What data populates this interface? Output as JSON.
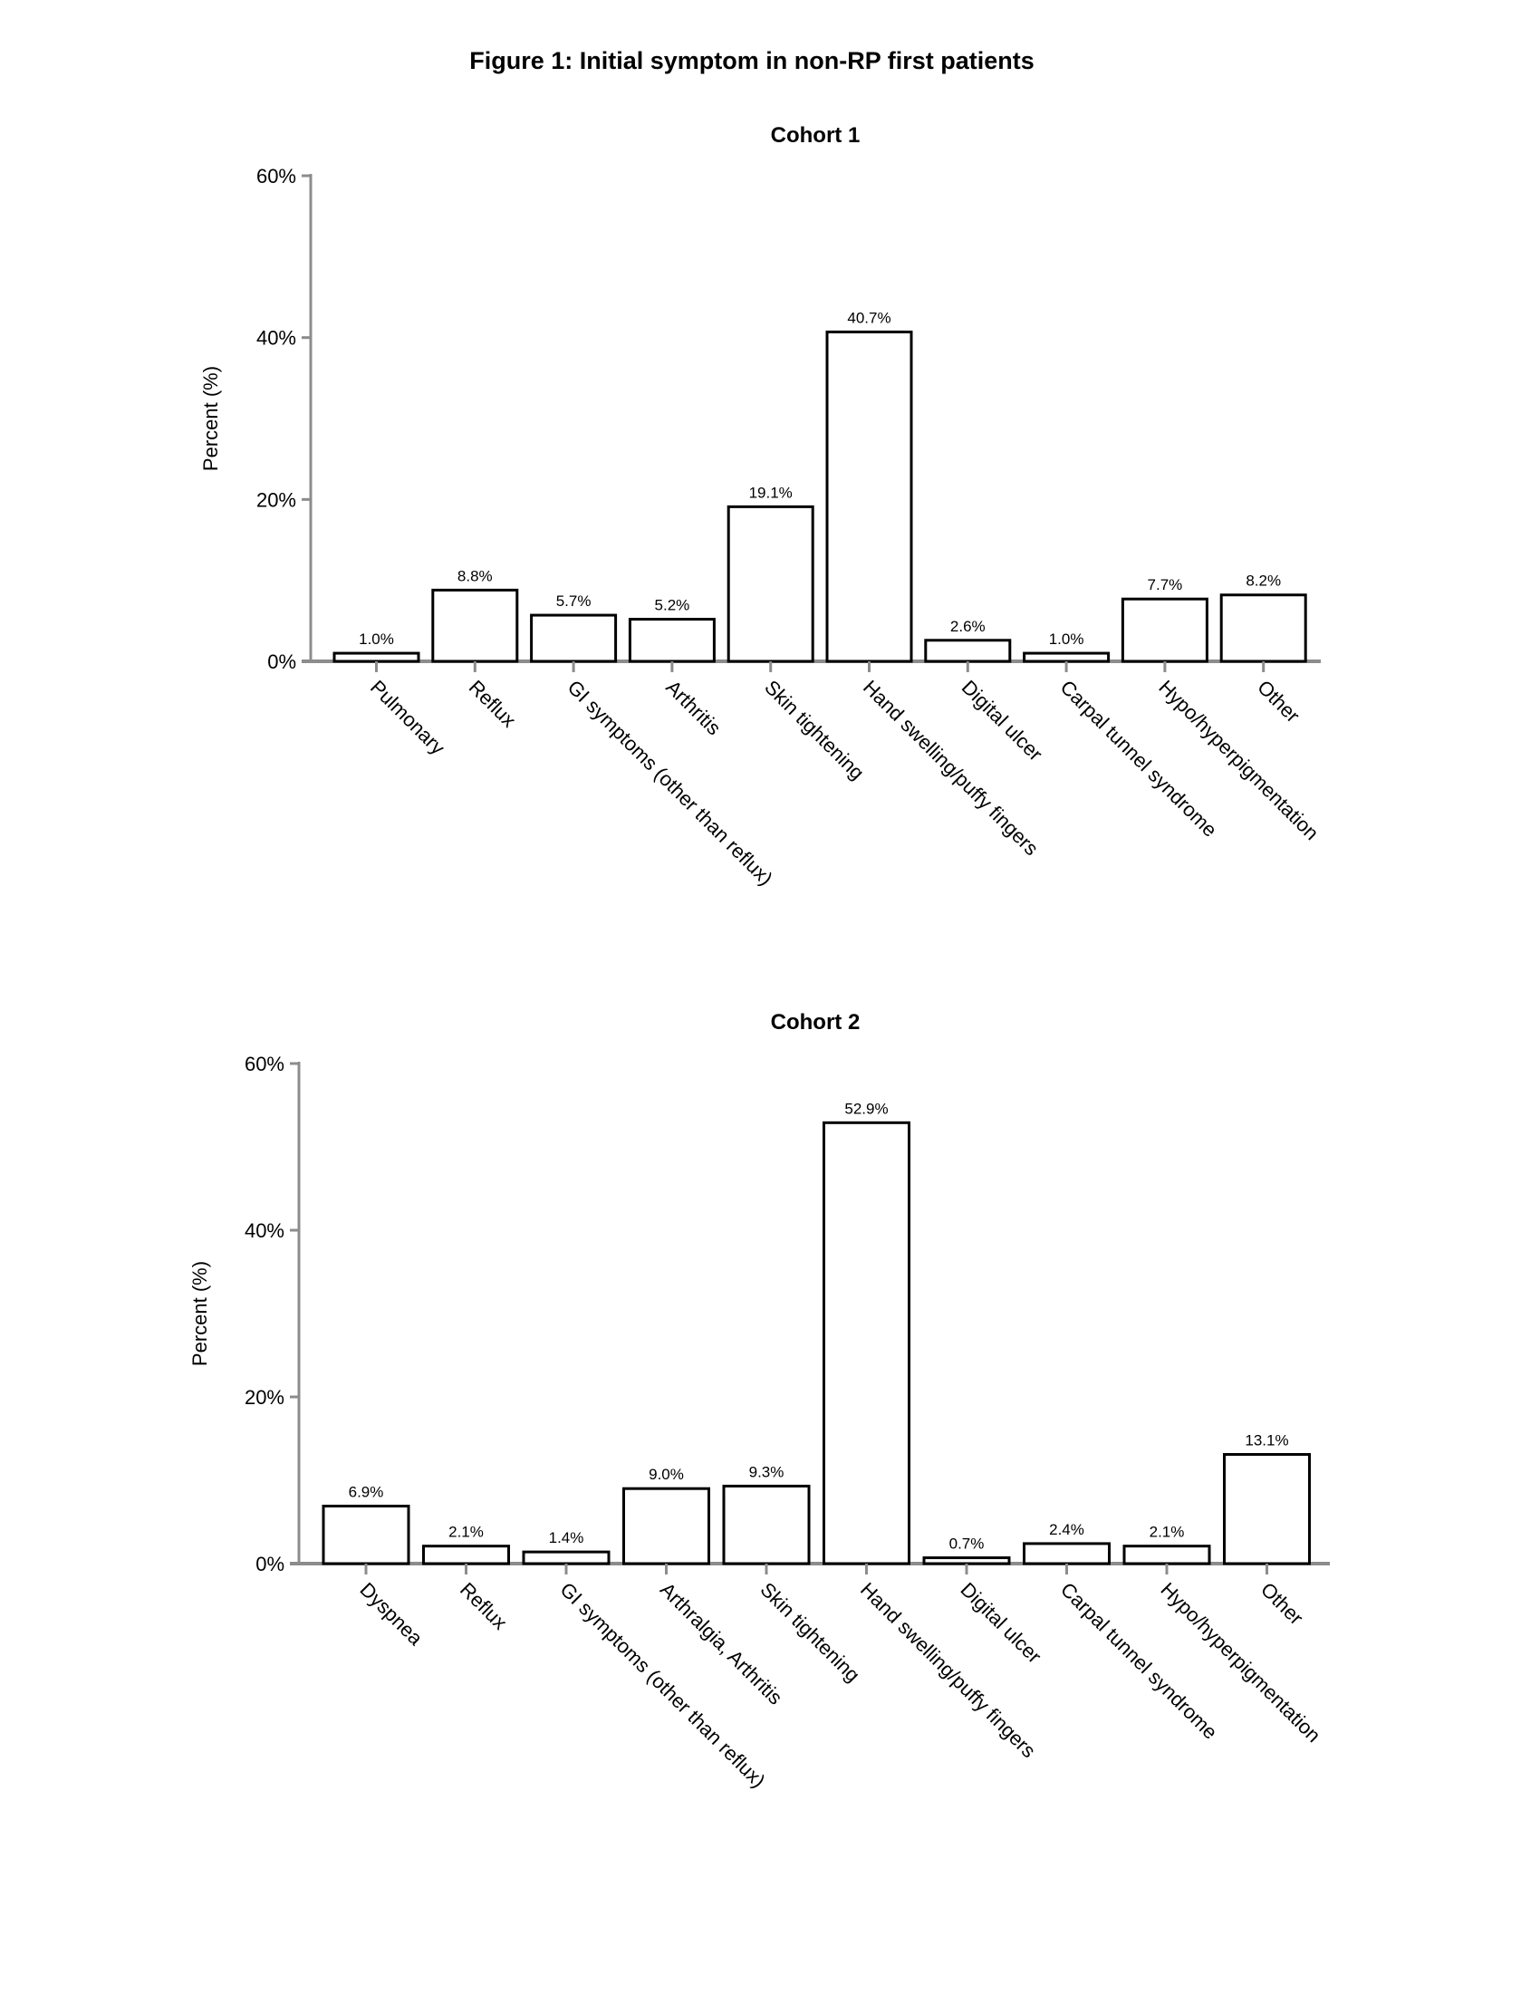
{
  "figure_title": "Figure 1: Initial symptom in non-RP first patients",
  "chart_data": [
    {
      "type": "bar",
      "title": "Cohort 1",
      "ylabel": "Percent (%)",
      "xlabel": "",
      "ylim": [
        0,
        60
      ],
      "yticks": [
        "0%",
        "20%",
        "40%",
        "60%"
      ],
      "grid": false,
      "categories": [
        "Pulmonary",
        "Reflux",
        "GI symptoms (other than reflux)",
        "Arthritis",
        "Skin tightening",
        "Hand swelling/puffy fingers",
        "Digital ulcer",
        "Carpal tunnel syndrome",
        "Hypo/hyperpigmentation",
        "Other"
      ],
      "values": [
        1.0,
        8.8,
        5.7,
        5.2,
        19.1,
        40.7,
        2.6,
        1.0,
        7.7,
        8.2
      ],
      "value_labels": [
        "1.0%",
        "8.8%",
        "5.7%",
        "5.2%",
        "19.1%",
        "40.7%",
        "2.6%",
        "1.0%",
        "7.7%",
        "8.2%"
      ],
      "bar_fill": "#ffffff",
      "bar_stroke": "#000000",
      "axis_color": "#8c8c8c"
    },
    {
      "type": "bar",
      "title": "Cohort 2",
      "ylabel": "Percent (%)",
      "xlabel": "",
      "ylim": [
        0,
        60
      ],
      "yticks": [
        "0%",
        "20%",
        "40%",
        "60%"
      ],
      "grid": false,
      "categories": [
        "Dyspnea",
        "Reflux",
        "GI symptoms (other than reflux)",
        "Arthralgia, Arthritis",
        "Skin tightening",
        "Hand swelling/puffy fingers",
        "Digital ulcer",
        "Carpal tunnel syndrome",
        "Hypo/hyperpigmentation",
        "Other"
      ],
      "values": [
        6.9,
        2.1,
        1.4,
        9.0,
        9.3,
        52.9,
        0.7,
        2.4,
        2.1,
        13.1
      ],
      "value_labels": [
        "6.9%",
        "2.1%",
        "1.4%",
        "9.0%",
        "9.3%",
        "52.9%",
        "0.7%",
        "2.4%",
        "2.1%",
        "13.1%"
      ],
      "bar_fill": "#ffffff",
      "bar_stroke": "#000000",
      "axis_color": "#8c8c8c"
    }
  ]
}
